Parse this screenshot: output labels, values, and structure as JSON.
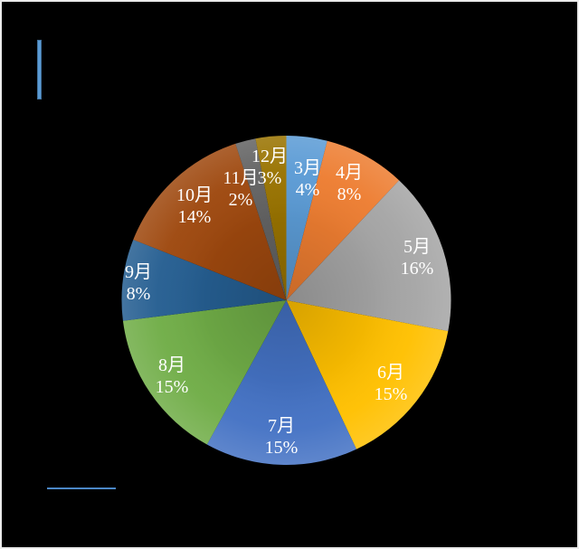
{
  "page": {
    "background_color": "#000000",
    "frame_border_color": "#ebebeb"
  },
  "decorations": {
    "vertical_accent_bar": {
      "fill_color": "#5B9BD5",
      "border_color": "#41719C"
    },
    "horizontal_accent_line": {
      "color": "#4B87C6"
    }
  },
  "chart_data": {
    "type": "pie",
    "categories": [
      "3月",
      "4月",
      "5月",
      "6月",
      "7月",
      "8月",
      "9月",
      "10月",
      "11月",
      "12月"
    ],
    "values": [
      4,
      8,
      16,
      15,
      15,
      15,
      8,
      14,
      2,
      3
    ],
    "value_unit": "%",
    "slice_labels": [
      "3月 4%",
      "4月 8%",
      "5月 16%",
      "6月 15%",
      "7月 15%",
      "8月 15%",
      "9月 8%",
      "10月 14%",
      "11月 2%",
      "12月 3%"
    ],
    "colors": [
      "#5B9BD5",
      "#ED7D31",
      "#A5A5A5",
      "#FFC000",
      "#4472C4",
      "#70AD47",
      "#255E91",
      "#9E480E",
      "#636363",
      "#997300"
    ],
    "start_angle_deg": 0,
    "direction": "clockwise",
    "label_text_color": "#FFFFFF",
    "legend": "none",
    "background": "#000000"
  }
}
